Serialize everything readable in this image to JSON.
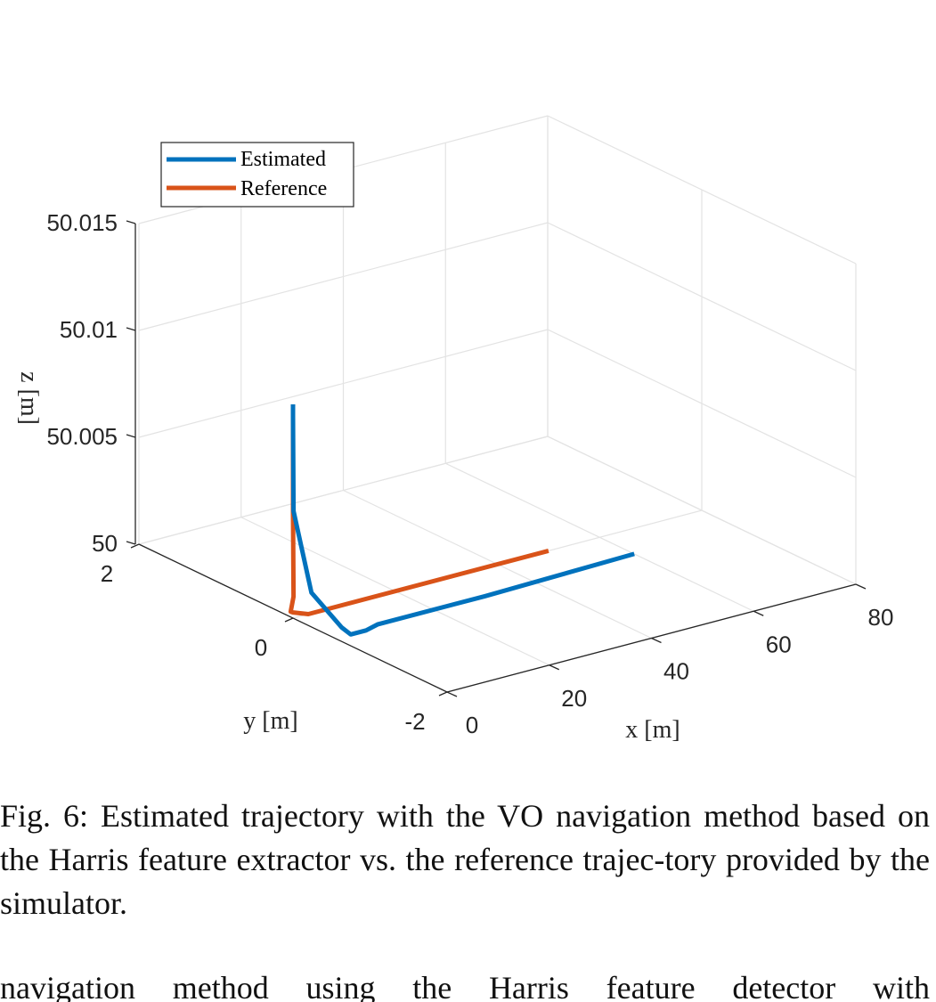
{
  "chart_data": {
    "type": "line",
    "dimension": "3d",
    "xlabel": "x [m]",
    "ylabel": "y [m]",
    "zlabel": "z [m]",
    "x_ticks": [
      "0",
      "20",
      "40",
      "60",
      "80"
    ],
    "y_ticks": [
      "-2",
      "0",
      "2"
    ],
    "z_ticks": [
      "50",
      "50.005",
      "50.01",
      "50.015"
    ],
    "xlim": [
      0,
      80
    ],
    "ylim": [
      -2,
      2
    ],
    "zlim": [
      50,
      50.015
    ],
    "grid": true,
    "legend_position": "top-left",
    "series": [
      {
        "name": "Estimated",
        "color": "#0072BD",
        "points": [
          {
            "x": 0,
            "y": 0,
            "z": 50.01
          },
          {
            "x": 0,
            "y": 0,
            "z": 50.0095
          },
          {
            "x": 0.1,
            "y": 0,
            "z": 50.005
          },
          {
            "x": 0.6,
            "y": -0.2,
            "z": 50.0015
          },
          {
            "x": 2.0,
            "y": -0.5,
            "z": 50.0003
          },
          {
            "x": 3.0,
            "y": -0.55,
            "z": 50.0
          },
          {
            "x": 6.0,
            "y": -0.55,
            "z": 50.0
          },
          {
            "x": 9.0,
            "y": -0.5,
            "z": 50.0
          },
          {
            "x": 30,
            "y": -0.5,
            "z": 50.0
          },
          {
            "x": 60,
            "y": -0.45,
            "z": 50.0
          }
        ]
      },
      {
        "name": "Reference",
        "color": "#D95319",
        "points": [
          {
            "x": 0,
            "y": 0,
            "z": 50.01
          },
          {
            "x": 0,
            "y": 0,
            "z": 50.005
          },
          {
            "x": 0.1,
            "y": 0,
            "z": 50.001
          },
          {
            "x": 0.3,
            "y": 0.05,
            "z": 50.0002
          },
          {
            "x": 1.5,
            "y": 0.1,
            "z": 50.0
          },
          {
            "x": 3.0,
            "y": 0,
            "z": 50.0
          },
          {
            "x": 50,
            "y": 0,
            "z": 50.0
          }
        ]
      }
    ]
  },
  "caption": "Fig. 6: Estimated trajectory with the VO navigation method based on the Harris feature extractor vs. the reference trajec-tory provided by the simulator.",
  "body_text": "navigation method using the Harris feature detector with"
}
